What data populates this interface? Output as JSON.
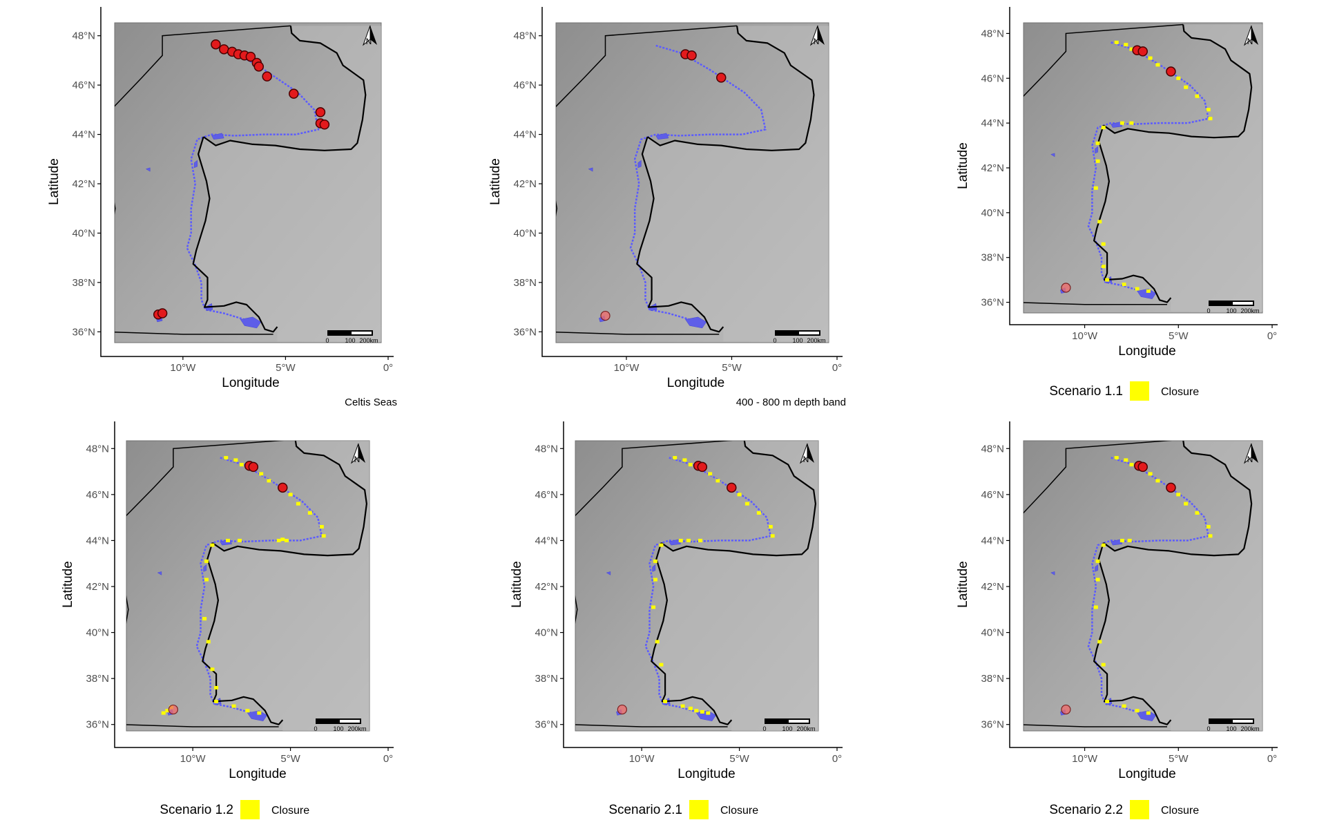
{
  "panels": [
    {
      "id": "p1",
      "caption": "Celtis Seas",
      "legend": null,
      "red_points": [
        [
          -8.4,
          47.65
        ],
        [
          -8.0,
          47.45
        ],
        [
          -7.6,
          47.35
        ],
        [
          -7.3,
          47.25
        ],
        [
          -7.0,
          47.2
        ],
        [
          -6.7,
          47.15
        ],
        [
          -6.4,
          46.9
        ],
        [
          -6.3,
          46.75
        ],
        [
          -5.9,
          46.35
        ],
        [
          -4.6,
          45.65
        ],
        [
          -3.3,
          44.9
        ],
        [
          -3.3,
          44.45
        ],
        [
          -3.1,
          44.4
        ],
        [
          -11.2,
          36.7
        ],
        [
          -11.0,
          36.75
        ]
      ],
      "faint_points": [
        [
          -3.3,
          44.9
        ],
        [
          -4.6,
          45.65
        ]
      ],
      "closure_points": []
    },
    {
      "id": "p2",
      "caption": "400 - 800 m depth band",
      "legend": null,
      "red_points": [
        [
          -7.2,
          47.25
        ],
        [
          -6.9,
          47.2
        ],
        [
          -5.5,
          46.3
        ]
      ],
      "faint_points": [
        [
          -11.0,
          36.65
        ]
      ],
      "closure_points": []
    },
    {
      "id": "p3",
      "caption": null,
      "legend": {
        "title": "Scenario 1.1",
        "label": "Closure",
        "color": "#ffff00"
      },
      "red_points": [
        [
          -7.2,
          47.25
        ],
        [
          -6.9,
          47.2
        ],
        [
          -5.4,
          46.3
        ]
      ],
      "faint_points": [
        [
          -11.0,
          36.65
        ]
      ],
      "closure_points": [
        [
          -8.3,
          47.6
        ],
        [
          -7.8,
          47.5
        ],
        [
          -7.5,
          47.3
        ],
        [
          -6.5,
          46.9
        ],
        [
          -6.1,
          46.6
        ],
        [
          -5.0,
          46.0
        ],
        [
          -4.6,
          45.6
        ],
        [
          -4.0,
          45.2
        ],
        [
          -3.4,
          44.6
        ],
        [
          -3.3,
          44.2
        ],
        [
          -7.5,
          44.0
        ],
        [
          -8.0,
          44.0
        ],
        [
          -9.0,
          43.8
        ],
        [
          -9.3,
          43.1
        ],
        [
          -9.3,
          42.3
        ],
        [
          -9.4,
          41.1
        ],
        [
          -9.2,
          39.6
        ],
        [
          -9.0,
          38.6
        ],
        [
          -9.0,
          37.6
        ],
        [
          -8.8,
          37.0
        ],
        [
          -7.9,
          36.8
        ],
        [
          -7.2,
          36.6
        ],
        [
          -6.6,
          36.5
        ]
      ]
    },
    {
      "id": "p4",
      "caption": null,
      "legend": {
        "title": "Scenario 1.2",
        "label": "Closure",
        "color": "#ffff00"
      },
      "red_points": [
        [
          -7.1,
          47.25
        ],
        [
          -6.9,
          47.2
        ],
        [
          -5.4,
          46.3
        ]
      ],
      "faint_points": [
        [
          -11.0,
          36.65
        ]
      ],
      "closure_points": [
        [
          -8.3,
          47.6
        ],
        [
          -7.8,
          47.5
        ],
        [
          -7.5,
          47.3
        ],
        [
          -6.5,
          46.9
        ],
        [
          -6.1,
          46.6
        ],
        [
          -5.0,
          46.0
        ],
        [
          -4.6,
          45.6
        ],
        [
          -4.0,
          45.2
        ],
        [
          -3.4,
          44.6
        ],
        [
          -3.3,
          44.2
        ],
        [
          -5.2,
          44.0
        ],
        [
          -5.4,
          44.05
        ],
        [
          -5.6,
          44.0
        ],
        [
          -7.6,
          44.0
        ],
        [
          -8.2,
          44.0
        ],
        [
          -9.0,
          43.8
        ],
        [
          -9.3,
          43.1
        ],
        [
          -9.3,
          42.3
        ],
        [
          -9.4,
          40.6
        ],
        [
          -9.2,
          39.6
        ],
        [
          -9.0,
          38.4
        ],
        [
          -8.8,
          37.6
        ],
        [
          -8.8,
          37.0
        ],
        [
          -7.9,
          36.8
        ],
        [
          -7.2,
          36.6
        ],
        [
          -6.6,
          36.5
        ],
        [
          -11.5,
          36.5
        ],
        [
          -11.3,
          36.6
        ],
        [
          -11.1,
          36.75
        ]
      ]
    },
    {
      "id": "p5",
      "caption": null,
      "legend": {
        "title": "Scenario 2.1",
        "label": "Closure",
        "color": "#ffff00"
      },
      "red_points": [
        [
          -7.1,
          47.25
        ],
        [
          -6.9,
          47.2
        ],
        [
          -5.4,
          46.3
        ]
      ],
      "faint_points": [
        [
          -11.0,
          36.65
        ]
      ],
      "closure_points": [
        [
          -8.3,
          47.6
        ],
        [
          -7.8,
          47.5
        ],
        [
          -7.5,
          47.3
        ],
        [
          -6.5,
          46.9
        ],
        [
          -6.1,
          46.6
        ],
        [
          -5.0,
          46.0
        ],
        [
          -4.6,
          45.6
        ],
        [
          -4.0,
          45.2
        ],
        [
          -3.4,
          44.6
        ],
        [
          -3.3,
          44.2
        ],
        [
          -7.0,
          44.0
        ],
        [
          -7.6,
          44.0
        ],
        [
          -8.0,
          44.0
        ],
        [
          -9.0,
          43.8
        ],
        [
          -9.3,
          43.1
        ],
        [
          -9.3,
          42.3
        ],
        [
          -9.4,
          41.1
        ],
        [
          -9.2,
          39.6
        ],
        [
          -9.0,
          38.6
        ],
        [
          -8.8,
          37.0
        ],
        [
          -7.9,
          36.8
        ],
        [
          -7.2,
          36.6
        ],
        [
          -6.6,
          36.5
        ],
        [
          -6.9,
          36.55
        ],
        [
          -7.5,
          36.7
        ]
      ]
    },
    {
      "id": "p6",
      "caption": null,
      "legend": {
        "title": "Scenario 2.2",
        "label": "Closure",
        "color": "#ffff00"
      },
      "red_points": [
        [
          -7.1,
          47.25
        ],
        [
          -6.9,
          47.2
        ],
        [
          -5.4,
          46.3
        ]
      ],
      "faint_points": [
        [
          -11.0,
          36.65
        ]
      ],
      "closure_points": [
        [
          -8.3,
          47.6
        ],
        [
          -7.8,
          47.5
        ],
        [
          -7.5,
          47.3
        ],
        [
          -6.5,
          46.9
        ],
        [
          -6.1,
          46.6
        ],
        [
          -5.0,
          46.0
        ],
        [
          -4.6,
          45.6
        ],
        [
          -4.0,
          45.2
        ],
        [
          -3.4,
          44.6
        ],
        [
          -3.3,
          44.2
        ],
        [
          -7.6,
          44.0
        ],
        [
          -8.0,
          44.0
        ],
        [
          -9.0,
          43.8
        ],
        [
          -9.3,
          43.1
        ],
        [
          -9.3,
          42.3
        ],
        [
          -9.4,
          41.1
        ],
        [
          -9.2,
          39.6
        ],
        [
          -9.0,
          38.6
        ],
        [
          -8.8,
          37.0
        ],
        [
          -7.9,
          36.8
        ],
        [
          -7.2,
          36.6
        ],
        [
          -6.6,
          36.5
        ]
      ]
    }
  ],
  "axis": {
    "x_title": "Longitude",
    "y_title": "Latitude",
    "x_ticks": [
      {
        "v": -10,
        "label": "10°W"
      },
      {
        "v": -5,
        "label": "5°W"
      },
      {
        "v": 0,
        "label": "0°"
      }
    ],
    "y_ticks": [
      {
        "v": 48,
        "label": "48°N"
      },
      {
        "v": 46,
        "label": "46°N"
      },
      {
        "v": 44,
        "label": "44°N"
      },
      {
        "v": 42,
        "label": "42°N"
      },
      {
        "v": 40,
        "label": "40°N"
      },
      {
        "v": 38,
        "label": "38°N"
      },
      {
        "v": 36,
        "label": "36°N"
      }
    ],
    "x_range": [
      -14,
      0
    ],
    "y_range": [
      35,
      49
    ]
  },
  "scalebar": {
    "labels": [
      "0",
      "100",
      "200km"
    ]
  },
  "north_arrow": {
    "label": "N"
  },
  "colors": {
    "closure": "#ffff00",
    "points": "#e31a1c",
    "depth_band": "#5b5bff",
    "bathymetry": "#9a9a9a"
  }
}
